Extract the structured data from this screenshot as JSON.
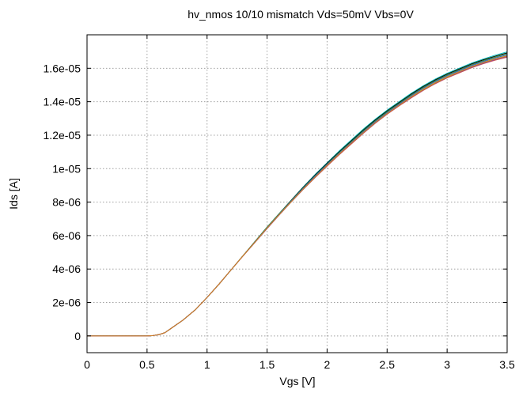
{
  "chart_data": {
    "type": "line",
    "title": "hv_nmos 10/10 mismatch Vds=50mV Vbs=0V",
    "xlabel": "Vgs [V]",
    "ylabel": "Ids [A]",
    "xlim": [
      0,
      3.5
    ],
    "ylim": [
      -1e-06,
      1.8e-05
    ],
    "grid": true,
    "legend": "none",
    "x_ticks": [
      {
        "value": 0,
        "label": "0"
      },
      {
        "value": 0.5,
        "label": "0.5"
      },
      {
        "value": 1,
        "label": "1"
      },
      {
        "value": 1.5,
        "label": "1.5"
      },
      {
        "value": 2,
        "label": "2"
      },
      {
        "value": 2.5,
        "label": "2.5"
      },
      {
        "value": 3,
        "label": "3"
      },
      {
        "value": 3.5,
        "label": "3.5"
      }
    ],
    "y_ticks": [
      {
        "value": 0,
        "label": "0"
      },
      {
        "value": 2e-06,
        "label": "2e-06"
      },
      {
        "value": 4e-06,
        "label": "4e-06"
      },
      {
        "value": 6e-06,
        "label": "6e-06"
      },
      {
        "value": 8e-06,
        "label": "8e-06"
      },
      {
        "value": 1e-05,
        "label": "1e-05"
      },
      {
        "value": 1.2e-05,
        "label": "1.2e-05"
      },
      {
        "value": 1.4e-05,
        "label": "1.4e-05"
      },
      {
        "value": 1.6e-05,
        "label": "1.6e-05"
      }
    ],
    "x": [
      0,
      0.5,
      0.55,
      0.6,
      0.65,
      0.7,
      0.8,
      0.9,
      1.0,
      1.1,
      1.2,
      1.3,
      1.4,
      1.5,
      1.6,
      1.7,
      1.8,
      1.9,
      2.0,
      2.1,
      2.2,
      2.3,
      2.4,
      2.5,
      2.6,
      2.7,
      2.8,
      2.9,
      3.0,
      3.1,
      3.2,
      3.3,
      3.4,
      3.5
    ],
    "series": [
      {
        "color": "#00c0c0",
        "values": [
          0,
          0,
          2e-08,
          8e-08,
          2e-07,
          4.5e-07,
          9.5e-07,
          1.55e-06,
          2.3e-06,
          3.1e-06,
          3.95e-06,
          4.8e-06,
          5.65e-06,
          6.5e-06,
          7.3e-06,
          8.1e-06,
          8.9e-06,
          9.65e-06,
          1.035e-05,
          1.105e-05,
          1.17e-05,
          1.235e-05,
          1.295e-05,
          1.35e-05,
          1.4e-05,
          1.45e-05,
          1.495e-05,
          1.535e-05,
          1.57e-05,
          1.6e-05,
          1.63e-05,
          1.655e-05,
          1.678e-05,
          1.698e-05
        ]
      },
      {
        "color": "#000000",
        "values": [
          0,
          0,
          2e-08,
          8e-08,
          2e-07,
          4.5e-07,
          9.5e-07,
          1.55e-06,
          2.3e-06,
          3.1e-06,
          3.95e-06,
          4.8e-06,
          5.65e-06,
          6.5e-06,
          7.3e-06,
          8.1e-06,
          8.88e-06,
          9.62e-06,
          1.032e-05,
          1.1e-05,
          1.165e-05,
          1.23e-05,
          1.29e-05,
          1.345e-05,
          1.395e-05,
          1.445e-05,
          1.49e-05,
          1.53e-05,
          1.565e-05,
          1.595e-05,
          1.625e-05,
          1.65e-05,
          1.672e-05,
          1.692e-05
        ]
      },
      {
        "color": "#2a8f2a",
        "values": [
          0,
          0,
          2e-08,
          8e-08,
          2e-07,
          4.5e-07,
          9.5e-07,
          1.55e-06,
          2.3e-06,
          3.1e-06,
          3.95e-06,
          4.8e-06,
          5.65e-06,
          6.5e-06,
          7.3e-06,
          8.08e-06,
          8.85e-06,
          9.58e-06,
          1.028e-05,
          1.096e-05,
          1.16e-05,
          1.225e-05,
          1.285e-05,
          1.34e-05,
          1.39e-05,
          1.44e-05,
          1.485e-05,
          1.525e-05,
          1.56e-05,
          1.59e-05,
          1.62e-05,
          1.645e-05,
          1.667e-05,
          1.687e-05
        ]
      },
      {
        "color": "#3050d0",
        "values": [
          0,
          0,
          2e-08,
          8e-08,
          2e-07,
          4.5e-07,
          9.5e-07,
          1.55e-06,
          2.3e-06,
          3.1e-06,
          3.95e-06,
          4.8e-06,
          5.63e-06,
          6.47e-06,
          7.27e-06,
          8.05e-06,
          8.82e-06,
          9.55e-06,
          1.025e-05,
          1.092e-05,
          1.156e-05,
          1.22e-05,
          1.28e-05,
          1.335e-05,
          1.385e-05,
          1.435e-05,
          1.48e-05,
          1.52e-05,
          1.555e-05,
          1.585e-05,
          1.615e-05,
          1.64e-05,
          1.662e-05,
          1.68e-05
        ]
      },
      {
        "color": "#b0b020",
        "values": [
          0,
          0,
          2e-08,
          8e-08,
          2e-07,
          4.5e-07,
          9.5e-07,
          1.55e-06,
          2.3e-06,
          3.1e-06,
          3.95e-06,
          4.8e-06,
          5.62e-06,
          6.45e-06,
          7.25e-06,
          8.02e-06,
          8.78e-06,
          9.5e-06,
          1.02e-05,
          1.088e-05,
          1.152e-05,
          1.215e-05,
          1.275e-05,
          1.33e-05,
          1.38e-05,
          1.43e-05,
          1.475e-05,
          1.515e-05,
          1.55e-05,
          1.58e-05,
          1.61e-05,
          1.635e-05,
          1.657e-05,
          1.675e-05
        ]
      },
      {
        "color": "#d05050",
        "values": [
          0,
          0,
          2e-08,
          8e-08,
          2e-07,
          4.5e-07,
          9.5e-07,
          1.55e-06,
          2.3e-06,
          3.1e-06,
          3.95e-06,
          4.78e-06,
          5.6e-06,
          6.42e-06,
          7.22e-06,
          8e-06,
          8.75e-06,
          9.46e-06,
          1.015e-05,
          1.082e-05,
          1.146e-05,
          1.21e-05,
          1.27e-05,
          1.325e-05,
          1.375e-05,
          1.422e-05,
          1.467e-05,
          1.507e-05,
          1.542e-05,
          1.572e-05,
          1.602e-05,
          1.627e-05,
          1.648e-05,
          1.666e-05
        ]
      },
      {
        "color": "#8040a0",
        "values": [
          0,
          0,
          2e-08,
          8e-08,
          2e-07,
          4.5e-07,
          9.5e-07,
          1.55e-06,
          2.3e-06,
          3.1e-06,
          3.95e-06,
          4.78e-06,
          5.6e-06,
          6.42e-06,
          7.22e-06,
          8e-06,
          8.76e-06,
          9.48e-06,
          1.018e-05,
          1.085e-05,
          1.15e-05,
          1.212e-05,
          1.272e-05,
          1.328e-05,
          1.378e-05,
          1.426e-05,
          1.47e-05,
          1.51e-05,
          1.545e-05,
          1.576e-05,
          1.605e-05,
          1.63e-05,
          1.652e-05,
          1.67e-05
        ]
      },
      {
        "color": "#d08020",
        "values": [
          0,
          0,
          2e-08,
          8e-08,
          2e-07,
          4.5e-07,
          9.5e-07,
          1.55e-06,
          2.3e-06,
          3.1e-06,
          3.95e-06,
          4.79e-06,
          5.61e-06,
          6.44e-06,
          7.24e-06,
          8.01e-06,
          8.77e-06,
          9.49e-06,
          1.019e-05,
          1.086e-05,
          1.151e-05,
          1.214e-05,
          1.274e-05,
          1.329e-05,
          1.379e-05,
          1.428e-05,
          1.472e-05,
          1.512e-05,
          1.547e-05,
          1.578e-05,
          1.608e-05,
          1.633e-05,
          1.655e-05,
          1.673e-05
        ]
      }
    ]
  }
}
